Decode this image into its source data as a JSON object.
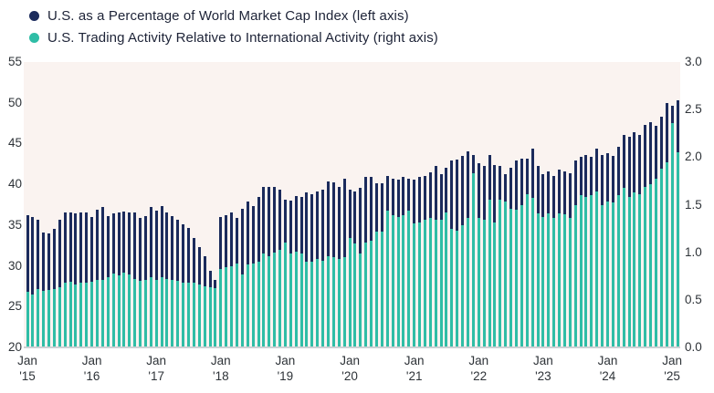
{
  "legend": [
    {
      "label": "U.S. as a Percentage of World Market Cap Index (left axis)",
      "color": "#1b2b5c"
    },
    {
      "label": "U.S. Trading Activity Relative to International Activity (right axis)",
      "color": "#2fbda6"
    }
  ],
  "chart_data": {
    "type": "bar",
    "title": "",
    "frequency": "monthly",
    "x_start": "Jan 2015",
    "x_end": "Feb 2025",
    "x_tick_labels": [
      {
        "month": "Jan",
        "year": "'15"
      },
      {
        "month": "Jan",
        "year": "'16"
      },
      {
        "month": "Jan",
        "year": "'17"
      },
      {
        "month": "Jan",
        "year": "'18"
      },
      {
        "month": "Jan",
        "year": "'19"
      },
      {
        "month": "Jan",
        "year": "'20"
      },
      {
        "month": "Jan",
        "year": "'21"
      },
      {
        "month": "Jan",
        "year": "'22"
      },
      {
        "month": "Jan",
        "year": "'23"
      },
      {
        "month": "Jan",
        "year": "'24"
      },
      {
        "month": "Jan",
        "year": "'25"
      }
    ],
    "left_axis": {
      "ticks": [
        "55",
        "50",
        "45",
        "40",
        "35",
        "30",
        "25",
        "20"
      ],
      "range": [
        20,
        55
      ]
    },
    "right_axis": {
      "ticks": [
        "3.0",
        "2.5",
        "2.0",
        "1.5",
        "1.0",
        "0.5",
        "0.0"
      ],
      "range": [
        0.0,
        3.0
      ]
    },
    "plot_background": "#faf3f0",
    "axis_line_color": "#ccd1d4",
    "series": [
      {
        "name": "U.S. as a Percentage of World Market Cap Index",
        "axis": "left",
        "color": "#1b2b5c",
        "values": [
          36.2,
          36.0,
          35.6,
          34.1,
          34.0,
          34.5,
          35.7,
          36.5,
          36.6,
          36.4,
          36.6,
          36.5,
          36.0,
          36.9,
          37.2,
          36.1,
          36.4,
          36.6,
          36.7,
          36.6,
          36.5,
          35.9,
          36.1,
          37.2,
          36.8,
          37.3,
          36.5,
          36.1,
          35.7,
          35.1,
          34.6,
          33.4,
          32.3,
          31.2,
          29.4,
          28.3,
          36.0,
          36.2,
          36.5,
          35.9,
          37.0,
          37.9,
          37.3,
          38.4,
          39.7,
          39.7,
          39.7,
          39.4,
          38.1,
          38.0,
          38.6,
          38.4,
          39.0,
          38.8,
          39.1,
          39.4,
          40.3,
          40.2,
          39.7,
          40.7,
          39.4,
          39.1,
          39.6,
          40.9,
          40.9,
          40.1,
          40.1,
          41.0,
          40.7,
          40.6,
          40.9,
          40.7,
          40.6,
          40.9,
          41.0,
          41.5,
          42.3,
          41.3,
          42.0,
          42.9,
          43.0,
          43.5,
          44.0,
          43.6,
          42.6,
          42.3,
          43.6,
          42.4,
          42.2,
          41.3,
          42.0,
          42.9,
          43.1,
          43.1,
          44.4,
          42.3,
          41.2,
          41.6,
          41.0,
          41.8,
          41.6,
          41.4,
          42.9,
          43.4,
          43.6,
          43.4,
          44.4,
          43.6,
          43.8,
          43.5,
          44.6,
          46.1,
          45.8,
          46.4,
          46.0,
          47.3,
          47.6,
          47.2,
          48.3,
          50.0,
          49.6,
          50.3
        ]
      },
      {
        "name": "U.S. Trading Activity Relative to International Activity",
        "axis": "right",
        "color": "#2fbda6",
        "values": [
          0.58,
          0.56,
          0.61,
          0.59,
          0.6,
          0.61,
          0.63,
          0.68,
          0.69,
          0.66,
          0.68,
          0.68,
          0.69,
          0.71,
          0.71,
          0.74,
          0.78,
          0.76,
          0.79,
          0.77,
          0.72,
          0.7,
          0.71,
          0.74,
          0.71,
          0.74,
          0.72,
          0.71,
          0.7,
          0.68,
          0.68,
          0.68,
          0.66,
          0.64,
          0.63,
          0.62,
          0.82,
          0.84,
          0.85,
          0.88,
          0.77,
          0.87,
          0.88,
          0.9,
          0.99,
          0.96,
          1.0,
          1.03,
          1.1,
          0.99,
          1.01,
          0.99,
          0.9,
          0.9,
          0.93,
          0.91,
          0.96,
          0.95,
          0.93,
          0.95,
          1.15,
          1.09,
          0.99,
          1.1,
          1.12,
          1.22,
          1.22,
          1.44,
          1.39,
          1.37,
          1.39,
          1.44,
          1.3,
          1.31,
          1.34,
          1.36,
          1.34,
          1.34,
          1.42,
          1.25,
          1.23,
          1.28,
          1.36,
          1.83,
          1.36,
          1.34,
          1.55,
          1.31,
          1.55,
          1.53,
          1.46,
          1.45,
          1.5,
          1.61,
          1.57,
          1.41,
          1.37,
          1.41,
          1.36,
          1.41,
          1.4,
          1.36,
          1.5,
          1.6,
          1.58,
          1.6,
          1.64,
          1.5,
          1.53,
          1.52,
          1.6,
          1.68,
          1.58,
          1.63,
          1.61,
          1.69,
          1.72,
          1.77,
          1.88,
          1.95,
          2.36,
          2.05
        ]
      }
    ]
  }
}
